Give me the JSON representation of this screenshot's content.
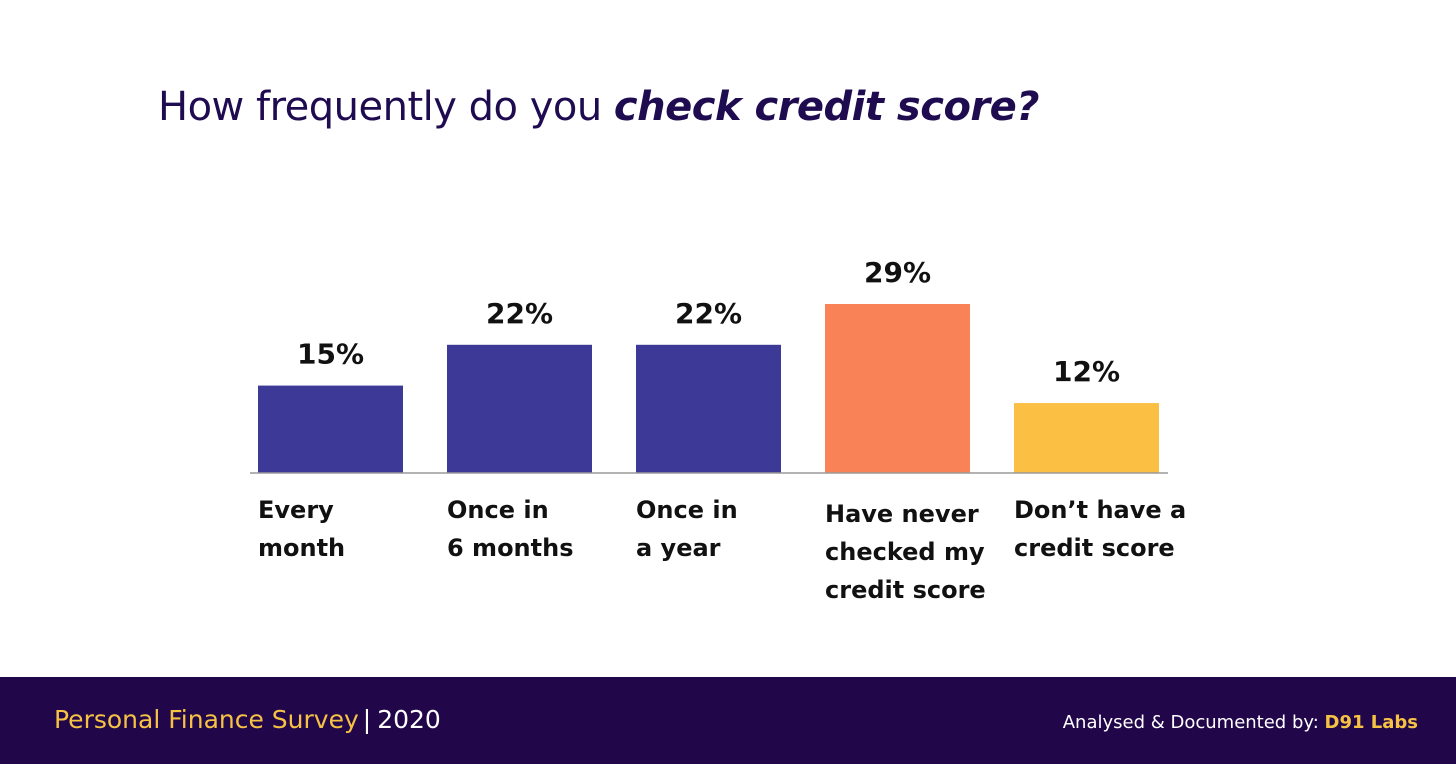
{
  "header": {
    "title_plain": "How frequently do you ",
    "title_emphasis": "check credit score?"
  },
  "chart_data": {
    "type": "bar",
    "title": "How frequently do you check credit score?",
    "categories": [
      [
        "Every",
        "month"
      ],
      [
        "Once in",
        "6 months"
      ],
      [
        "Once in",
        "a year"
      ],
      [
        "Have never",
        "checked my",
        "credit score"
      ],
      [
        "Don’t have a",
        "credit score"
      ]
    ],
    "values": [
      15,
      22,
      22,
      29,
      12
    ],
    "value_labels": [
      "15%",
      "22%",
      "22%",
      "29%",
      "12%"
    ],
    "colors": [
      "#3c3a96",
      "#3c3a96",
      "#3c3a96",
      "#f98356",
      "#fabf43"
    ],
    "ylim": [
      0,
      29
    ],
    "grid": false,
    "xlabel": "",
    "ylabel": ""
  },
  "footer": {
    "survey_name": "Personal Finance Survey",
    "separator": "|",
    "year": "2020",
    "credit_prefix": "Analysed & Documented by: ",
    "credit_brand": "D91 Labs"
  }
}
